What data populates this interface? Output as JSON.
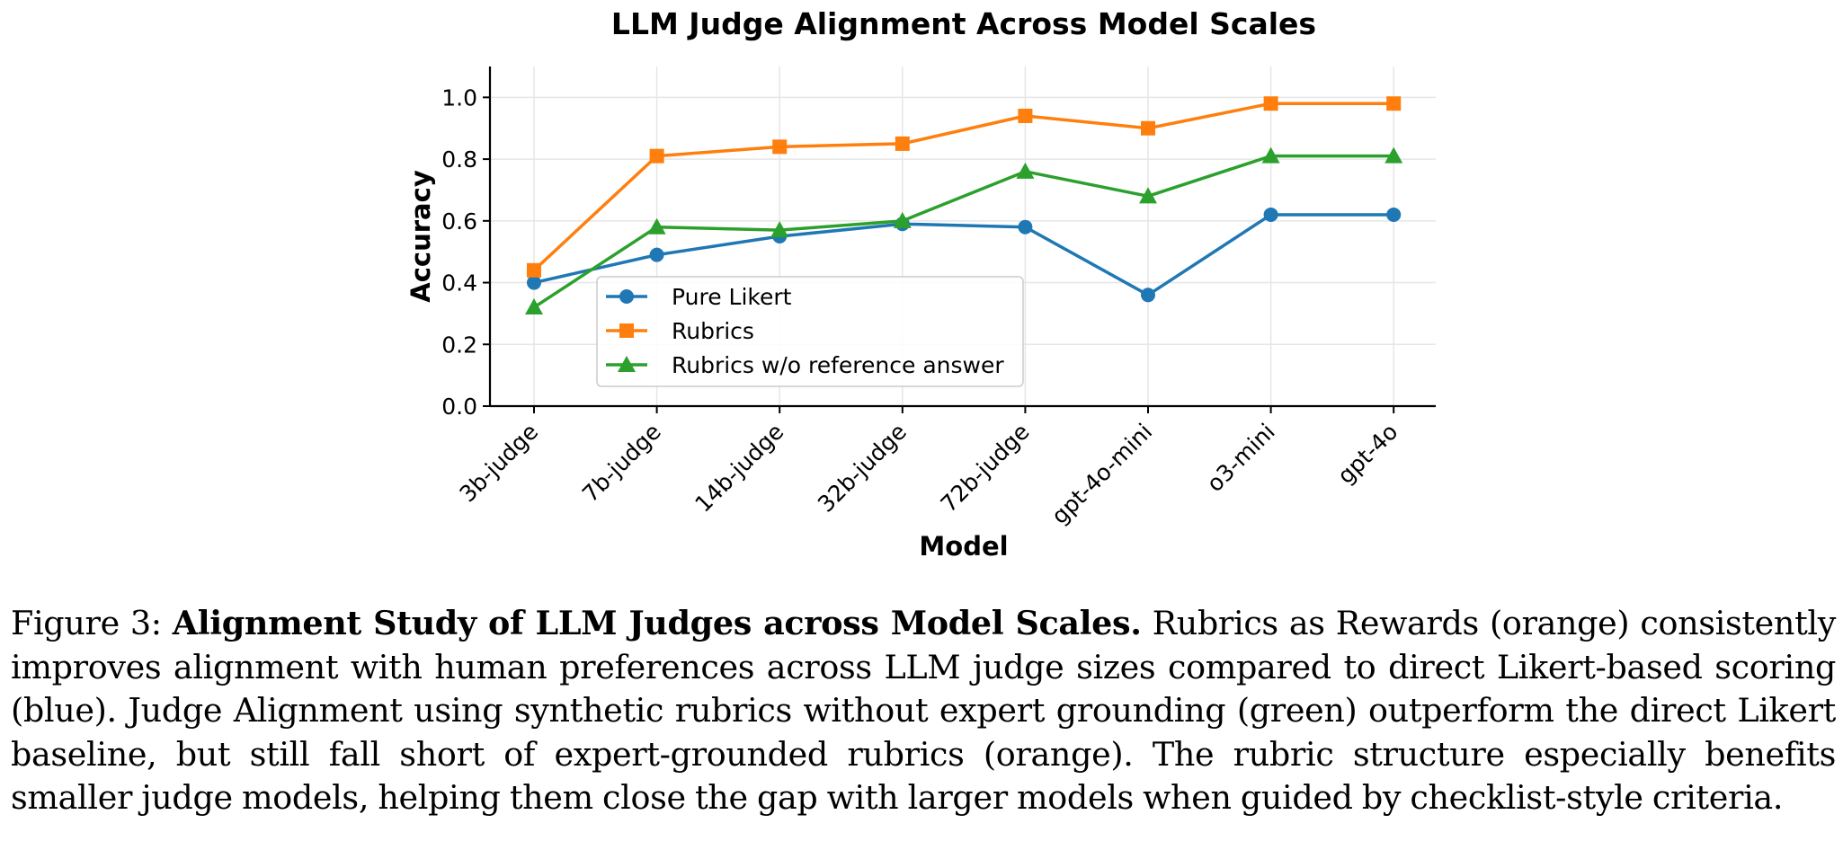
{
  "chart_data": {
    "type": "line",
    "title": "LLM Judge Alignment Across Model Scales",
    "xlabel": "Model",
    "ylabel": "Accuracy",
    "categories": [
      "3b-judge",
      "7b-judge",
      "14b-judge",
      "32b-judge",
      "72b-judge",
      "gpt-4o-mini",
      "o3-mini",
      "gpt-4o"
    ],
    "ylim": [
      0,
      1.1
    ],
    "yticks": [
      "0.0",
      "0.2",
      "0.4",
      "0.6",
      "0.8",
      "1.0"
    ],
    "ytick_values": [
      0,
      0.2,
      0.4,
      0.6,
      0.8,
      1.0
    ],
    "grid": true,
    "legend_position": "lower-left",
    "series": [
      {
        "name": "Pure Likert",
        "color": "#1f77b4",
        "marker": "circle",
        "values": [
          0.4,
          0.49,
          0.55,
          0.59,
          0.58,
          0.36,
          0.62,
          0.62
        ]
      },
      {
        "name": "Rubrics",
        "color": "#ff7f0e",
        "marker": "square",
        "values": [
          0.44,
          0.81,
          0.84,
          0.85,
          0.94,
          0.9,
          0.98,
          0.98
        ]
      },
      {
        "name": "Rubrics w/o reference answer",
        "color": "#2ca02c",
        "marker": "triangle",
        "values": [
          0.32,
          0.58,
          0.57,
          0.6,
          0.76,
          0.68,
          0.81,
          0.81
        ]
      }
    ]
  },
  "caption": {
    "label": "Figure 3:",
    "lead": "Alignment Study of LLM Judges across Model Scales.",
    "body": "Rubrics as Rewards (orange) consistently improves alignment with human preferences across LLM judge sizes compared to direct Likert-based scoring (blue). Judge Alignment using synthetic rubrics without expert grounding (green) outperform the direct Likert baseline, but still fall short of expert-grounded rubrics (orange). The rubric structure especially benefits smaller judge models, helping them close the gap with larger models when guided by checklist-style criteria."
  }
}
